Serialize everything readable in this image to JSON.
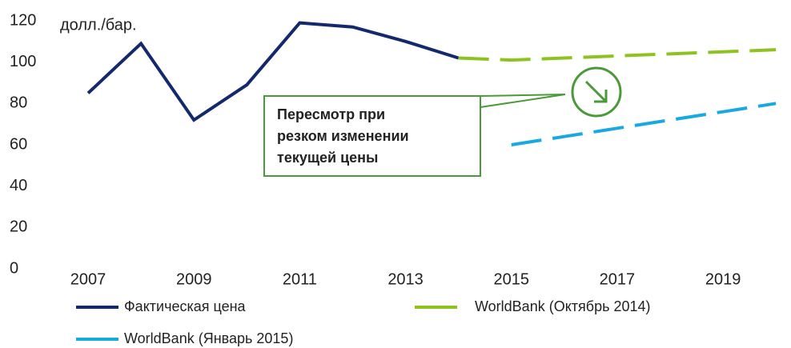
{
  "chart_data": {
    "type": "line",
    "ylabel": "долл./бар.",
    "x": [
      2007,
      2008,
      2009,
      2010,
      2011,
      2012,
      2013,
      2014,
      2015,
      2016,
      2017,
      2018,
      2019,
      2020
    ],
    "xlim": [
      2006.5,
      2020.3
    ],
    "xticks": [
      2007,
      2009,
      2011,
      2013,
      2015,
      2017,
      2019
    ],
    "ylim": [
      0,
      120
    ],
    "yticks": [
      0,
      20,
      40,
      60,
      80,
      100,
      120
    ],
    "series": [
      {
        "name": "Фактическая цена",
        "color": "#13296b",
        "dashed": false,
        "values": [
          85,
          109,
          72,
          89,
          119,
          117,
          110,
          102,
          null,
          null,
          null,
          null,
          null,
          null
        ]
      },
      {
        "name": "WorldBank (Октябрь 2014)",
        "color": "#8dc21f",
        "dashed": true,
        "values": [
          null,
          null,
          null,
          null,
          null,
          null,
          null,
          102,
          101,
          102,
          103,
          104,
          105,
          106
        ]
      },
      {
        "name": "WorldBank (Январь 2015)",
        "color": "#17a9e0",
        "dashed": true,
        "values": [
          null,
          null,
          null,
          null,
          null,
          null,
          null,
          null,
          60,
          64,
          68,
          72,
          76,
          80
        ]
      }
    ],
    "annotation": [
      "Пересмотр при",
      "резком изменении",
      "текущей цены"
    ]
  }
}
